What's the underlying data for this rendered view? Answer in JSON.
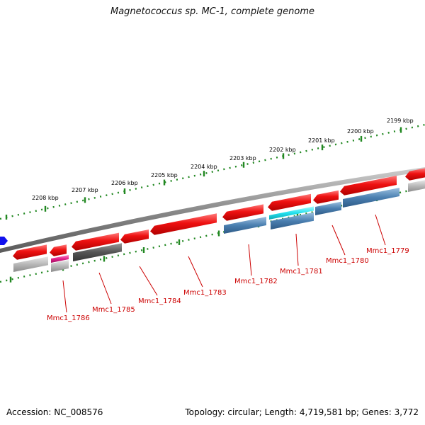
{
  "title": "Magnetococcus sp. MC-1, complete genome",
  "footer": {
    "accession": "Accession: NC_008576",
    "summary": "Topology: circular; Length: 4,719,581 bp; Genes: 3,772"
  },
  "ruler": {
    "unit": "kbp",
    "ticks": [
      {
        "label": "2208 kbp",
        "value": 2208
      },
      {
        "label": "2207 kbp",
        "value": 2207
      },
      {
        "label": "2206 kbp",
        "value": 2206
      },
      {
        "label": "2205 kbp",
        "value": 2205
      },
      {
        "label": "2204 kbp",
        "value": 2204
      },
      {
        "label": "2203 kbp",
        "value": 2203
      },
      {
        "label": "2202 kbp",
        "value": 2202
      },
      {
        "label": "2201 kbp",
        "value": 2201
      },
      {
        "label": "2200 kbp",
        "value": 2200
      },
      {
        "label": "2199 kbp",
        "value": 2199
      }
    ]
  },
  "gene_labels": [
    {
      "name": "Mmc1_1786",
      "color": "#cc0000"
    },
    {
      "name": "Mmc1_1785",
      "color": "#cc0000"
    },
    {
      "name": "Mmc1_1784",
      "color": "#cc0000"
    },
    {
      "name": "Mmc1_1783",
      "color": "#cc0000"
    },
    {
      "name": "Mmc1_1782",
      "color": "#cc0000"
    },
    {
      "name": "Mmc1_1781",
      "color": "#cc0000"
    },
    {
      "name": "Mmc1_1780",
      "color": "#cc0000"
    },
    {
      "name": "Mmc1_1779",
      "color": "#cc0000"
    }
  ],
  "colors": {
    "gene_red": "#ee1111",
    "steel_blue": "#4a7fb0",
    "cyan": "#22e0ee",
    "magenta": "#e0208a",
    "gray_light": "#b8b8b8",
    "gray_dark": "#555555",
    "backbone": "#888888",
    "tick_green": "#228822",
    "marker_blue": "#1111ee"
  }
}
